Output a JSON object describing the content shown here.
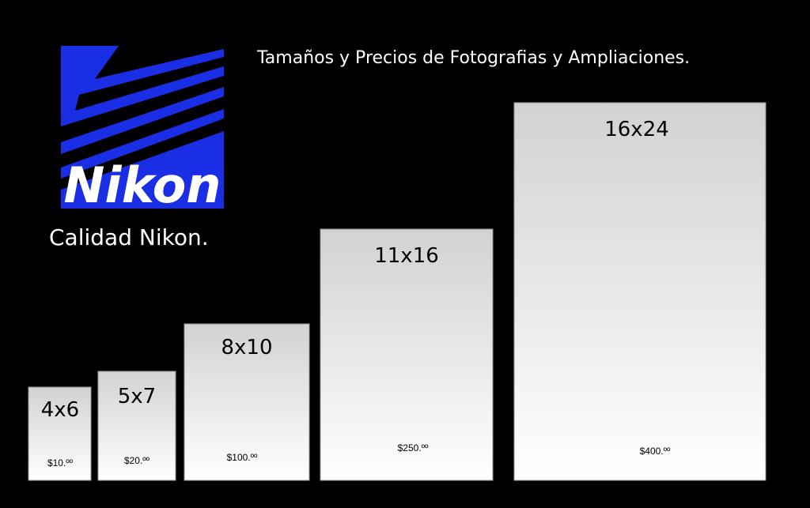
{
  "header": {
    "title": "Tamaños y Precios de Fotografias y Ampliaciones."
  },
  "logo": {
    "brand": "Nikon",
    "tagline": "Calidad Nikon."
  },
  "sizes": [
    {
      "label": "4x6",
      "price": "$10.ºº"
    },
    {
      "label": "5x7",
      "price": "$20.ºº"
    },
    {
      "label": "8x10",
      "price": "$100.ºº"
    },
    {
      "label": "11x16",
      "price": "$250.ºº"
    },
    {
      "label": "16x24",
      "price": "$400.ºº"
    }
  ]
}
